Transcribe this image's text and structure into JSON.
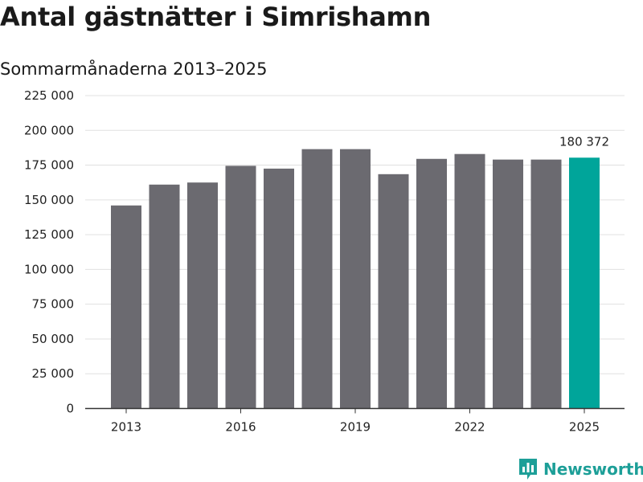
{
  "header": {
    "title": "Antal gästnätter i Simrishamn",
    "subtitle": "Sommarmånaderna 2013–2025"
  },
  "brand": {
    "name": "Newsworthy",
    "icon": "bar-chart-logo-icon",
    "color": "#1d9f98"
  },
  "chart_data": {
    "type": "bar",
    "title": "Antal gästnätter i Simrishamn",
    "subtitle": "Sommarmånaderna 2013–2025",
    "xlabel": "",
    "ylabel": "",
    "categories": [
      "2013",
      "2014",
      "2015",
      "2016",
      "2017",
      "2018",
      "2019",
      "2020",
      "2021",
      "2022",
      "2023",
      "2024",
      "2025"
    ],
    "x_tick_labels": [
      "2013",
      "2016",
      "2019",
      "2022",
      "2025"
    ],
    "values": [
      146000,
      161000,
      162500,
      174500,
      172500,
      186500,
      186500,
      168500,
      179500,
      183000,
      179000,
      179000,
      180372
    ],
    "ylim": [
      0,
      225000
    ],
    "y_ticks": [
      0,
      25000,
      50000,
      75000,
      100000,
      125000,
      150000,
      175000,
      200000,
      225000
    ],
    "y_tick_labels": [
      "0",
      "25 000",
      "50 000",
      "75 000",
      "100 000",
      "125 000",
      "150 000",
      "175 000",
      "200 000",
      "225 000"
    ],
    "grid": true,
    "colors": {
      "default": "#6b6a70",
      "highlight": "#00a59a",
      "grid": "#e0e0e0",
      "axis": "#333333"
    },
    "highlight_index": 12,
    "annotations": [
      {
        "category": "2025",
        "text": "180 372"
      }
    ]
  }
}
